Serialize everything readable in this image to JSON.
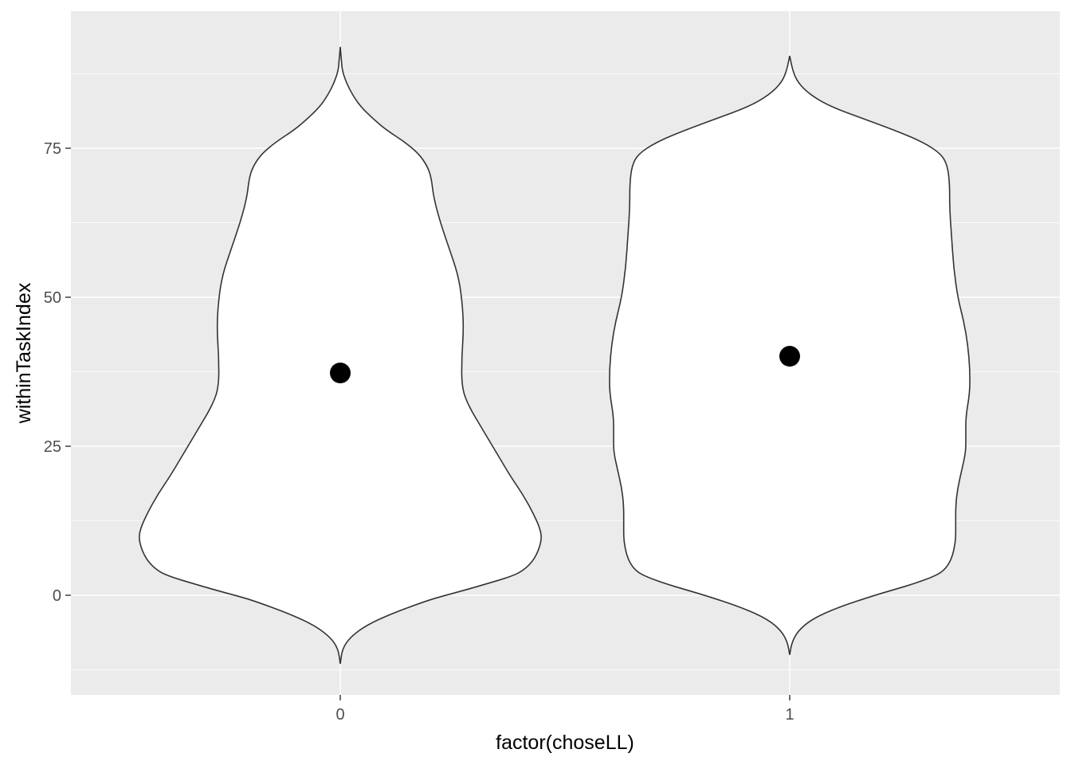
{
  "chart_data": {
    "type": "violin",
    "xlabel": "factor(choseLL)",
    "ylabel": "withinTaskIndex",
    "categories": [
      "0",
      "1"
    ],
    "ylim": [
      -13.5,
      98
    ],
    "yticks": [
      0,
      25,
      50,
      75
    ],
    "yminor": [
      -12.5,
      12.5,
      37.5,
      62.5,
      87.5
    ],
    "grid": true,
    "series": [
      {
        "category": "0",
        "mean": 37.3,
        "profile": [
          {
            "y": -11.5,
            "w": 0.0
          },
          {
            "y": -9,
            "w": 0.01
          },
          {
            "y": -7,
            "w": 0.05
          },
          {
            "y": -5,
            "w": 0.13
          },
          {
            "y": -3,
            "w": 0.26
          },
          {
            "y": -1,
            "w": 0.42
          },
          {
            "y": 0,
            "w": 0.52
          },
          {
            "y": 1,
            "w": 0.63
          },
          {
            "y": 2,
            "w": 0.73
          },
          {
            "y": 3,
            "w": 0.83
          },
          {
            "y": 4,
            "w": 0.9
          },
          {
            "y": 6,
            "w": 0.96
          },
          {
            "y": 9,
            "w": 0.995
          },
          {
            "y": 11,
            "w": 0.99
          },
          {
            "y": 14,
            "w": 0.95
          },
          {
            "y": 17,
            "w": 0.9
          },
          {
            "y": 20,
            "w": 0.84
          },
          {
            "y": 24,
            "w": 0.77
          },
          {
            "y": 28,
            "w": 0.7
          },
          {
            "y": 32,
            "w": 0.63
          },
          {
            "y": 35,
            "w": 0.6
          },
          {
            "y": 40,
            "w": 0.6
          },
          {
            "y": 45,
            "w": 0.61
          },
          {
            "y": 50,
            "w": 0.6
          },
          {
            "y": 54,
            "w": 0.58
          },
          {
            "y": 58,
            "w": 0.54
          },
          {
            "y": 63,
            "w": 0.49
          },
          {
            "y": 67,
            "w": 0.46
          },
          {
            "y": 70,
            "w": 0.45
          },
          {
            "y": 72,
            "w": 0.43
          },
          {
            "y": 74,
            "w": 0.39
          },
          {
            "y": 76,
            "w": 0.32
          },
          {
            "y": 78,
            "w": 0.23
          },
          {
            "y": 80,
            "w": 0.16
          },
          {
            "y": 82,
            "w": 0.1
          },
          {
            "y": 84,
            "w": 0.06
          },
          {
            "y": 86,
            "w": 0.03
          },
          {
            "y": 88,
            "w": 0.01
          },
          {
            "y": 90,
            "w": 0.005
          },
          {
            "y": 92,
            "w": 0.0
          }
        ]
      },
      {
        "category": "1",
        "mean": 40.1,
        "profile": [
          {
            "y": -10,
            "w": 0.0
          },
          {
            "y": -8,
            "w": 0.01
          },
          {
            "y": -6,
            "w": 0.04
          },
          {
            "y": -4,
            "w": 0.11
          },
          {
            "y": -2,
            "w": 0.24
          },
          {
            "y": 0,
            "w": 0.42
          },
          {
            "y": 1,
            "w": 0.52
          },
          {
            "y": 2,
            "w": 0.62
          },
          {
            "y": 3,
            "w": 0.7
          },
          {
            "y": 4,
            "w": 0.76
          },
          {
            "y": 6,
            "w": 0.8
          },
          {
            "y": 9,
            "w": 0.82
          },
          {
            "y": 12,
            "w": 0.82
          },
          {
            "y": 15,
            "w": 0.82
          },
          {
            "y": 18,
            "w": 0.83
          },
          {
            "y": 21,
            "w": 0.85
          },
          {
            "y": 24,
            "w": 0.87
          },
          {
            "y": 27,
            "w": 0.87
          },
          {
            "y": 30,
            "w": 0.87
          },
          {
            "y": 34,
            "w": 0.89
          },
          {
            "y": 38,
            "w": 0.89
          },
          {
            "y": 42,
            "w": 0.88
          },
          {
            "y": 46,
            "w": 0.86
          },
          {
            "y": 50,
            "w": 0.83
          },
          {
            "y": 55,
            "w": 0.81
          },
          {
            "y": 60,
            "w": 0.8
          },
          {
            "y": 65,
            "w": 0.79
          },
          {
            "y": 69,
            "w": 0.79
          },
          {
            "y": 72,
            "w": 0.78
          },
          {
            "y": 74,
            "w": 0.75
          },
          {
            "y": 76,
            "w": 0.66
          },
          {
            "y": 78,
            "w": 0.52
          },
          {
            "y": 80,
            "w": 0.36
          },
          {
            "y": 82,
            "w": 0.2
          },
          {
            "y": 84,
            "w": 0.1
          },
          {
            "y": 86,
            "w": 0.04
          },
          {
            "y": 88,
            "w": 0.015
          },
          {
            "y": 90.5,
            "w": 0.0
          }
        ]
      }
    ]
  }
}
